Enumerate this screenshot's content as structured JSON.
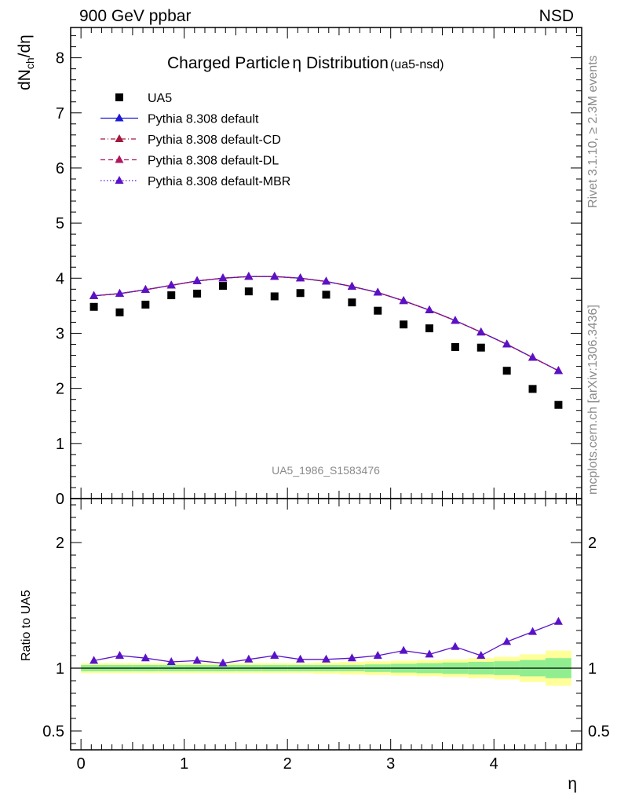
{
  "header": {
    "left": "900 GeV ppbar",
    "right": "NSD"
  },
  "side_text": {
    "rivet": "Rivet 3.1.10, ≥ 2.3M events",
    "mcplots": "mcplots.cern.ch [arXiv:1306.3436]"
  },
  "chart_data": [
    {
      "type": "scatter",
      "title_main": "Charged Particle",
      "title_symbol": "η",
      "title_rest": " Distribution",
      "title_sub": "(ua5-nsd)",
      "ylabel_main": "dN",
      "ylabel_sub": "ch",
      "ylabel_rest": "/dη",
      "analysis_id": "UA5_1986_S1583476",
      "xlim": [
        -0.1,
        4.85
      ],
      "ylim": [
        0,
        8.55
      ],
      "yticks": [
        0,
        1,
        2,
        3,
        4,
        5,
        6,
        7,
        8
      ],
      "yticklabels": [
        "0",
        "1",
        "2",
        "3",
        "4",
        "5",
        "6",
        "7",
        "8"
      ],
      "x": [
        0.125,
        0.375,
        0.625,
        0.875,
        1.125,
        1.375,
        1.625,
        1.875,
        2.125,
        2.375,
        2.625,
        2.875,
        3.125,
        3.375,
        3.625,
        3.875,
        4.125,
        4.375,
        4.625
      ],
      "series": [
        {
          "name": "UA5",
          "marker": "square",
          "color": "#000000",
          "values": [
            3.48,
            3.38,
            3.52,
            3.69,
            3.72,
            3.86,
            3.76,
            3.67,
            3.73,
            3.7,
            3.56,
            3.41,
            3.16,
            3.09,
            2.75,
            2.74,
            2.32,
            1.99,
            1.7
          ]
        },
        {
          "name": "Pythia 8.308 default",
          "marker": "triangle",
          "line": "solid",
          "color": "#1a1ad6",
          "values": [
            3.68,
            3.72,
            3.79,
            3.87,
            3.95,
            4.0,
            4.03,
            4.03,
            4.0,
            3.94,
            3.85,
            3.74,
            3.59,
            3.42,
            3.23,
            3.02,
            2.8,
            2.56,
            2.32
          ]
        },
        {
          "name": "Pythia 8.308 default-CD",
          "marker": "triangle",
          "line": "dashdot",
          "color": "#a3183c",
          "values": [
            3.68,
            3.72,
            3.79,
            3.87,
            3.95,
            4.0,
            4.03,
            4.03,
            4.0,
            3.94,
            3.85,
            3.74,
            3.59,
            3.42,
            3.23,
            3.02,
            2.8,
            2.56,
            2.32
          ]
        },
        {
          "name": "Pythia 8.308 default-DL",
          "marker": "triangle",
          "line": "dashed",
          "color": "#b0185e",
          "values": [
            3.68,
            3.72,
            3.79,
            3.87,
            3.95,
            4.0,
            4.03,
            4.03,
            4.0,
            3.94,
            3.85,
            3.74,
            3.59,
            3.42,
            3.23,
            3.02,
            2.8,
            2.56,
            2.32
          ]
        },
        {
          "name": "Pythia 8.308 default-MBR",
          "marker": "triangle",
          "line": "dotted",
          "color": "#5a12c8",
          "values": [
            3.68,
            3.72,
            3.79,
            3.87,
            3.95,
            4.0,
            4.03,
            4.03,
            4.0,
            3.94,
            3.85,
            3.74,
            3.59,
            3.42,
            3.23,
            3.02,
            2.8,
            2.56,
            2.32
          ]
        }
      ]
    },
    {
      "type": "line",
      "ylabel": "Ratio to UA5",
      "xlabel": "η",
      "xlim": [
        -0.1,
        4.85
      ],
      "ylim": [
        0.35,
        2.35
      ],
      "xticks": [
        0,
        1,
        2,
        3,
        4
      ],
      "xticklabels": [
        "0",
        "1",
        "2",
        "3",
        "4"
      ],
      "yticks": [
        0.5,
        1,
        2
      ],
      "yticklabels": [
        "0.5",
        "1",
        "2"
      ],
      "x": [
        0.125,
        0.375,
        0.625,
        0.875,
        1.125,
        1.375,
        1.625,
        1.875,
        2.125,
        2.375,
        2.625,
        2.875,
        3.125,
        3.375,
        3.625,
        3.875,
        4.125,
        4.375,
        4.625
      ],
      "ratio": [
        1.06,
        1.1,
        1.08,
        1.05,
        1.06,
        1.04,
        1.07,
        1.1,
        1.07,
        1.07,
        1.08,
        1.1,
        1.14,
        1.11,
        1.17,
        1.1,
        1.21,
        1.29,
        1.37
      ],
      "band_stat": [
        0.025,
        0.025,
        0.025,
        0.025,
        0.025,
        0.025,
        0.025,
        0.025,
        0.025,
        0.025,
        0.025,
        0.03,
        0.035,
        0.04,
        0.045,
        0.05,
        0.055,
        0.065,
        0.08
      ],
      "band_total": [
        0.04,
        0.04,
        0.04,
        0.04,
        0.04,
        0.04,
        0.04,
        0.04,
        0.04,
        0.045,
        0.05,
        0.055,
        0.06,
        0.065,
        0.07,
        0.08,
        0.09,
        0.11,
        0.14
      ],
      "band_stat_color": "#90ee90",
      "band_total_color": "#ffff99",
      "series_color": "#5a12c8"
    }
  ]
}
